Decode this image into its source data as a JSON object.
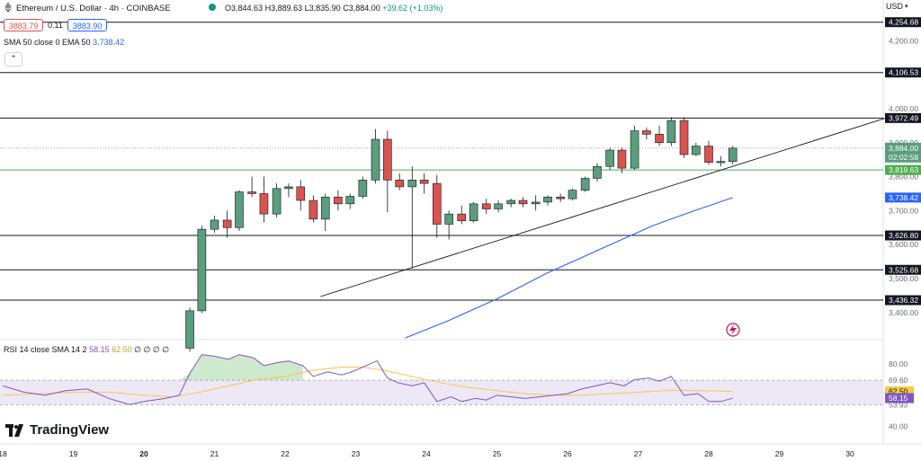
{
  "header": {
    "symbol": "Ethereum / U.S. Dollar · 4h · COINBASE",
    "ohlc": {
      "O": "3,844.63",
      "H": "3,889.63",
      "L": "3,835.90",
      "C": "3,884.00",
      "change": "+39.62 (+1.03%)"
    },
    "bid": "3883.79",
    "spread": "0.11",
    "ask": "3883.90",
    "sma_legend_name": "SMA 50 close 0 EMA 50",
    "sma_legend_value": "3,738.42",
    "currency": "USD",
    "collapse_icon": "chevron-up-icon"
  },
  "rsi_legend": {
    "name": "RSI 14 close SMA 14 2",
    "value1": "58.15",
    "value2": "62.50",
    "extra": "∅ ∅ ∅ ∅"
  },
  "branding": {
    "name": "TradingView"
  },
  "colors": {
    "up": "#5a9e7c",
    "down": "#d9534f",
    "sma": "#2962ff",
    "trendline": "#131722",
    "support": "#4caf50",
    "rsi": "#7e57c2",
    "rsi_ma": "#f7c948",
    "rsi_band": "#ede7f6"
  },
  "chart_data": [
    {
      "type": "candlestick",
      "title": "Ethereum / U.S. Dollar · 4h · COINBASE",
      "ylim": [
        3320,
        4320
      ],
      "y_ticks": [
        "4,200.00",
        "4,000.00",
        "3,900.00",
        "3,800.00",
        "3,700.00",
        "3,600.00",
        "3,500.00",
        "3,400.00"
      ],
      "y_tick_values": [
        4200,
        4000,
        3900,
        3800,
        3700,
        3600,
        3500,
        3400
      ],
      "x_ticks": [
        "18",
        "19",
        "20",
        "21",
        "22",
        "23",
        "24",
        "25",
        "26",
        "27",
        "28",
        "29",
        "30"
      ],
      "x_tick_bold": "20",
      "levels": [
        {
          "value": 4254.68,
          "label": "4,254.68",
          "kind": "resistance"
        },
        {
          "value": 4106.53,
          "label": "4,106.53",
          "kind": "resistance"
        },
        {
          "value": 3972.49,
          "label": "3,972.49",
          "kind": "resistance"
        },
        {
          "value": 3819.63,
          "label": "3,819.63",
          "kind": "support"
        },
        {
          "value": 3626.8,
          "label": "3,626.80",
          "kind": "support"
        },
        {
          "value": 3525.68,
          "label": "3,525.68",
          "kind": "support"
        },
        {
          "value": 3436.32,
          "label": "3,436.32",
          "kind": "support"
        }
      ],
      "price_label": "3,884.00",
      "price_value": 3884.0,
      "countdown": "02:02:58",
      "sma_label": "3,738.42",
      "sma_value": 3738.42,
      "candles": [
        {
          "day": 20.65,
          "o": 3295,
          "h": 3415,
          "l": 3285,
          "c": 3405
        },
        {
          "day": 20.82,
          "o": 3405,
          "h": 3655,
          "l": 3398,
          "c": 3645
        },
        {
          "day": 21.0,
          "o": 3645,
          "h": 3685,
          "l": 3635,
          "c": 3672
        },
        {
          "day": 21.18,
          "o": 3672,
          "h": 3700,
          "l": 3620,
          "c": 3650
        },
        {
          "day": 21.35,
          "o": 3650,
          "h": 3760,
          "l": 3640,
          "c": 3755
        },
        {
          "day": 21.53,
          "o": 3755,
          "h": 3800,
          "l": 3740,
          "c": 3750
        },
        {
          "day": 21.7,
          "o": 3750,
          "h": 3800,
          "l": 3665,
          "c": 3690
        },
        {
          "day": 21.88,
          "o": 3690,
          "h": 3780,
          "l": 3680,
          "c": 3765
        },
        {
          "day": 22.05,
          "o": 3765,
          "h": 3780,
          "l": 3740,
          "c": 3770
        },
        {
          "day": 22.22,
          "o": 3770,
          "h": 3790,
          "l": 3700,
          "c": 3730
        },
        {
          "day": 22.4,
          "o": 3730,
          "h": 3745,
          "l": 3665,
          "c": 3675
        },
        {
          "day": 22.57,
          "o": 3675,
          "h": 3750,
          "l": 3640,
          "c": 3740
        },
        {
          "day": 22.75,
          "o": 3740,
          "h": 3760,
          "l": 3700,
          "c": 3720
        },
        {
          "day": 22.92,
          "o": 3720,
          "h": 3750,
          "l": 3705,
          "c": 3742
        },
        {
          "day": 23.1,
          "o": 3742,
          "h": 3800,
          "l": 3735,
          "c": 3790
        },
        {
          "day": 23.28,
          "o": 3790,
          "h": 3940,
          "l": 3780,
          "c": 3910
        },
        {
          "day": 23.45,
          "o": 3910,
          "h": 3935,
          "l": 3695,
          "c": 3790
        },
        {
          "day": 23.62,
          "o": 3790,
          "h": 3810,
          "l": 3760,
          "c": 3770
        },
        {
          "day": 23.8,
          "o": 3770,
          "h": 3830,
          "l": 3530,
          "c": 3790
        },
        {
          "day": 23.97,
          "o": 3790,
          "h": 3810,
          "l": 3750,
          "c": 3780
        },
        {
          "day": 24.15,
          "o": 3780,
          "h": 3805,
          "l": 3620,
          "c": 3660
        },
        {
          "day": 24.32,
          "o": 3660,
          "h": 3700,
          "l": 3615,
          "c": 3690
        },
        {
          "day": 24.5,
          "o": 3690,
          "h": 3715,
          "l": 3660,
          "c": 3670
        },
        {
          "day": 24.67,
          "o": 3670,
          "h": 3725,
          "l": 3665,
          "c": 3720
        },
        {
          "day": 24.85,
          "o": 3720,
          "h": 3735,
          "l": 3690,
          "c": 3705
        },
        {
          "day": 25.02,
          "o": 3705,
          "h": 3730,
          "l": 3695,
          "c": 3720
        },
        {
          "day": 25.2,
          "o": 3720,
          "h": 3735,
          "l": 3710,
          "c": 3730
        },
        {
          "day": 25.37,
          "o": 3730,
          "h": 3740,
          "l": 3710,
          "c": 3720
        },
        {
          "day": 25.55,
          "o": 3720,
          "h": 3745,
          "l": 3700,
          "c": 3725
        },
        {
          "day": 25.72,
          "o": 3725,
          "h": 3745,
          "l": 3715,
          "c": 3740
        },
        {
          "day": 25.9,
          "o": 3740,
          "h": 3750,
          "l": 3725,
          "c": 3735
        },
        {
          "day": 26.07,
          "o": 3735,
          "h": 3765,
          "l": 3730,
          "c": 3760
        },
        {
          "day": 26.25,
          "o": 3760,
          "h": 3800,
          "l": 3755,
          "c": 3795
        },
        {
          "day": 26.42,
          "o": 3795,
          "h": 3840,
          "l": 3785,
          "c": 3830
        },
        {
          "day": 26.6,
          "o": 3830,
          "h": 3885,
          "l": 3820,
          "c": 3878
        },
        {
          "day": 26.77,
          "o": 3878,
          "h": 3885,
          "l": 3810,
          "c": 3825
        },
        {
          "day": 26.95,
          "o": 3825,
          "h": 3950,
          "l": 3820,
          "c": 3935
        },
        {
          "day": 27.12,
          "o": 3935,
          "h": 3945,
          "l": 3910,
          "c": 3925
        },
        {
          "day": 27.3,
          "o": 3925,
          "h": 3950,
          "l": 3890,
          "c": 3900
        },
        {
          "day": 27.47,
          "o": 3900,
          "h": 3975,
          "l": 3890,
          "c": 3965
        },
        {
          "day": 27.65,
          "o": 3965,
          "h": 3975,
          "l": 3855,
          "c": 3865
        },
        {
          "day": 27.82,
          "o": 3865,
          "h": 3900,
          "l": 3860,
          "c": 3890
        },
        {
          "day": 28.0,
          "o": 3890,
          "h": 3905,
          "l": 3835,
          "c": 3842
        },
        {
          "day": 28.17,
          "o": 3842,
          "h": 3860,
          "l": 3830,
          "c": 3845
        },
        {
          "day": 28.34,
          "o": 3844.63,
          "h": 3889.63,
          "l": 3835.9,
          "c": 3884.0
        }
      ],
      "sma_points": [
        [
          23.7,
          3325
        ],
        [
          24.3,
          3375
        ],
        [
          25.0,
          3440
        ],
        [
          25.7,
          3515
        ],
        [
          26.5,
          3590
        ],
        [
          27.2,
          3655
        ],
        [
          27.8,
          3700
        ],
        [
          28.34,
          3738.42
        ]
      ],
      "trendline": [
        [
          22.5,
          3447
        ],
        [
          30.5,
          3972
        ]
      ]
    },
    {
      "type": "line",
      "title": "RSI 14 close SMA 14 2",
      "ylim": [
        30,
        95
      ],
      "y_ticks": [
        "80.00",
        "69.60",
        "53.93",
        "40.00"
      ],
      "y_tick_values": [
        80,
        69.6,
        53.93,
        40
      ],
      "band": [
        53.93,
        69.6
      ],
      "rsi_label": "58.15",
      "rsi_value": 58.15,
      "ma_label": "62.50",
      "ma_value": 62.5,
      "series": [
        {
          "name": "RSI",
          "points": [
            [
              18.0,
              66
            ],
            [
              18.3,
              62
            ],
            [
              18.6,
              60
            ],
            [
              18.9,
              63
            ],
            [
              19.2,
              64
            ],
            [
              19.5,
              58
            ],
            [
              19.8,
              54
            ],
            [
              20.0,
              56
            ],
            [
              20.3,
              58
            ],
            [
              20.5,
              60
            ],
            [
              20.65,
              74
            ],
            [
              20.82,
              86
            ],
            [
              21.0,
              85
            ],
            [
              21.2,
              83
            ],
            [
              21.35,
              86
            ],
            [
              21.55,
              84
            ],
            [
              21.7,
              79
            ],
            [
              21.9,
              81
            ],
            [
              22.05,
              82
            ],
            [
              22.25,
              79
            ],
            [
              22.4,
              72
            ],
            [
              22.6,
              75
            ],
            [
              22.8,
              73
            ],
            [
              22.95,
              75
            ],
            [
              23.1,
              78
            ],
            [
              23.3,
              82
            ],
            [
              23.45,
              71
            ],
            [
              23.6,
              68
            ],
            [
              23.8,
              66
            ],
            [
              23.97,
              68
            ],
            [
              24.15,
              56
            ],
            [
              24.35,
              59
            ],
            [
              24.5,
              56
            ],
            [
              24.7,
              58
            ],
            [
              24.85,
              57
            ],
            [
              25.0,
              60
            ],
            [
              25.2,
              59
            ],
            [
              25.4,
              58
            ],
            [
              25.6,
              59
            ],
            [
              25.8,
              60
            ],
            [
              26.0,
              61
            ],
            [
              26.2,
              64
            ],
            [
              26.4,
              66
            ],
            [
              26.6,
              68
            ],
            [
              26.8,
              66
            ],
            [
              26.95,
              70
            ],
            [
              27.15,
              71
            ],
            [
              27.3,
              69
            ],
            [
              27.47,
              72
            ],
            [
              27.65,
              60
            ],
            [
              27.85,
              61
            ],
            [
              28.0,
              56
            ],
            [
              28.17,
              56
            ],
            [
              28.34,
              58.15
            ]
          ]
        },
        {
          "name": "SMA",
          "points": [
            [
              18.0,
              60
            ],
            [
              18.5,
              61
            ],
            [
              19.0,
              62
            ],
            [
              19.5,
              62
            ],
            [
              20.0,
              60
            ],
            [
              20.4,
              59
            ],
            [
              20.8,
              62
            ],
            [
              21.2,
              66
            ],
            [
              21.6,
              70
            ],
            [
              22.0,
              72
            ],
            [
              22.4,
              76
            ],
            [
              22.8,
              78
            ],
            [
              23.1,
              78
            ],
            [
              23.4,
              76
            ],
            [
              23.8,
              72
            ],
            [
              24.2,
              68
            ],
            [
              24.6,
              65
            ],
            [
              25.0,
              63
            ],
            [
              25.4,
              61
            ],
            [
              25.8,
              60
            ],
            [
              26.2,
              60
            ],
            [
              26.6,
              61
            ],
            [
              27.0,
              62
            ],
            [
              27.4,
              63
            ],
            [
              27.8,
              63
            ],
            [
              28.34,
              62.5
            ]
          ]
        }
      ]
    }
  ]
}
